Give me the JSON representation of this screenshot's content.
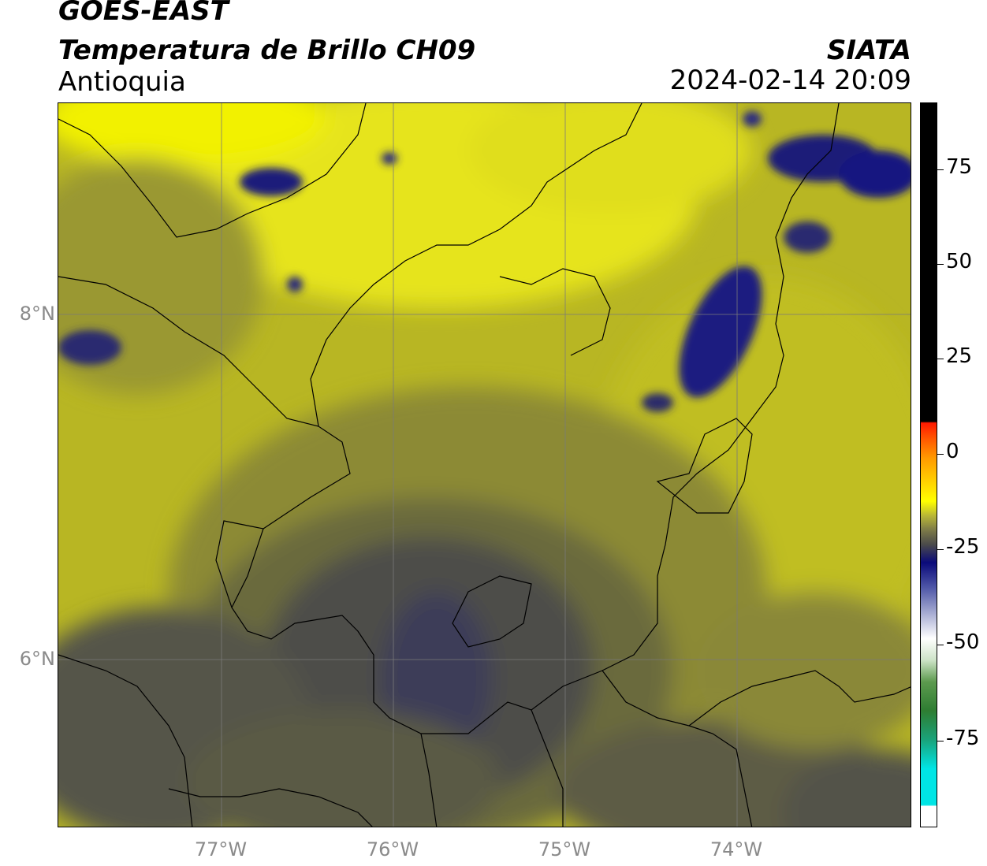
{
  "header": {
    "title_line1": "GOES-EAST",
    "title_line2": "Temperatura de Brillo CH09",
    "region": "Antioquia",
    "organization": "SIATA",
    "datetime": "2024-02-14 20:09"
  },
  "map": {
    "lat_ticks": [
      "8°N",
      "6°N"
    ],
    "lon_ticks": [
      "77°W",
      "76°W",
      "75°W",
      "74°W"
    ]
  },
  "colorbar": {
    "labels": [
      "75",
      "50",
      "25",
      "0",
      "-25",
      "-50",
      "-75"
    ],
    "colors": {
      "black": "#000000",
      "red": "#ff1a00",
      "orange": "#ff9900",
      "yellow": "#ffff00",
      "gray": "#4a4a4a",
      "navy": "#0a0a7a",
      "white": "#ffffff",
      "green": "#2e7d32",
      "cyan": "#00e5e5"
    }
  }
}
